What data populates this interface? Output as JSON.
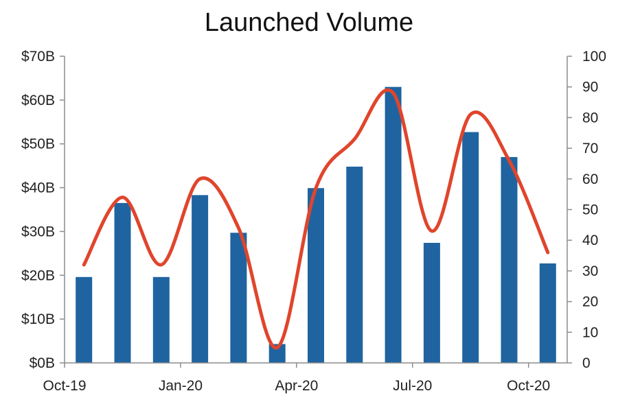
{
  "chart_data": {
    "type": "bar",
    "title": "Launched Volume",
    "xlabel": "",
    "ylabel": "",
    "x_tick_labels": [
      "Oct-19",
      "Jan-20",
      "Apr-20",
      "Jul-20",
      "Oct-20"
    ],
    "categories": [
      "Oct-19",
      "Nov-19",
      "Dec-19",
      "Jan-20",
      "Feb-20",
      "Mar-20",
      "Apr-20",
      "May-20",
      "Jun-20",
      "Jul-20",
      "Aug-20",
      "Sep-20",
      "Oct-20"
    ],
    "y_left": {
      "ylim": [
        0,
        70
      ],
      "ticks": [
        "$0B",
        "$10B",
        "$20B",
        "$30B",
        "$40B",
        "$50B",
        "$60B",
        "$70B"
      ]
    },
    "y_right": {
      "ylim": [
        0,
        100
      ],
      "ticks": [
        "0",
        "10",
        "20",
        "30",
        "40",
        "50",
        "60",
        "70",
        "80",
        "90",
        "100"
      ]
    },
    "series": [
      {
        "type": "bar",
        "axis": "left",
        "unit": "$B",
        "color": "#1f64a0",
        "values": [
          19.6,
          36.5,
          19.6,
          38.3,
          29.7,
          4.3,
          39.9,
          44.8,
          63.0,
          27.4,
          52.7,
          47.0,
          22.7
        ]
      },
      {
        "type": "line",
        "axis": "right",
        "smooth": true,
        "color": "#e0452c",
        "values": [
          32,
          54,
          32,
          60,
          44,
          5,
          57,
          73,
          88,
          43,
          81,
          66,
          36
        ]
      }
    ],
    "grid": false,
    "legend": "none"
  }
}
